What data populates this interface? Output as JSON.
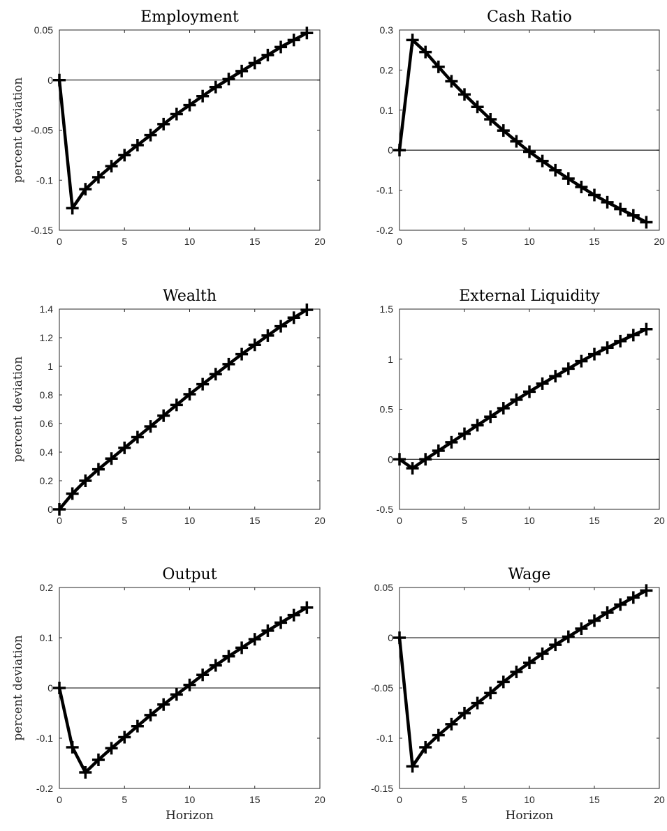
{
  "figure": {
    "ylabel": "percent deviation",
    "xlabel": "Horizon",
    "line_color": "#000000"
  },
  "chart_data": [
    {
      "type": "line",
      "title": "Employment",
      "ylabel": "percent deviation",
      "xlabel": "",
      "xlim": [
        0,
        20
      ],
      "ylim": [
        -0.15,
        0.05
      ],
      "xticks": [
        "0",
        "5",
        "10",
        "15",
        "20"
      ],
      "yticks": [
        "-0.15",
        "-0.1",
        "-0.05",
        "0",
        "0.05"
      ],
      "zero_line": true,
      "grid": false,
      "x": [
        0,
        1,
        2,
        3,
        4,
        5,
        6,
        7,
        8,
        9,
        10,
        11,
        12,
        13,
        14,
        15,
        16,
        17,
        18,
        19
      ],
      "values": [
        0,
        -0.128,
        -0.109,
        -0.097,
        -0.086,
        -0.075,
        -0.065,
        -0.055,
        -0.044,
        -0.034,
        -0.025,
        -0.016,
        -0.007,
        0.001,
        0.009,
        0.017,
        0.025,
        0.033,
        0.04,
        0.047
      ]
    },
    {
      "type": "line",
      "title": "Cash Ratio",
      "ylabel": "",
      "xlabel": "",
      "xlim": [
        0,
        20
      ],
      "ylim": [
        -0.2,
        0.3
      ],
      "xticks": [
        "0",
        "5",
        "10",
        "15",
        "20"
      ],
      "yticks": [
        "-0.2",
        "-0.1",
        "0",
        "0.1",
        "0.2",
        "0.3"
      ],
      "zero_line": true,
      "grid": false,
      "x": [
        0,
        1,
        2,
        3,
        4,
        5,
        6,
        7,
        8,
        9,
        10,
        11,
        12,
        13,
        14,
        15,
        16,
        17,
        18,
        19
      ],
      "values": [
        0,
        0.275,
        0.245,
        0.208,
        0.172,
        0.139,
        0.108,
        0.077,
        0.049,
        0.022,
        -0.004,
        -0.027,
        -0.05,
        -0.071,
        -0.092,
        -0.112,
        -0.13,
        -0.147,
        -0.163,
        -0.18
      ]
    },
    {
      "type": "line",
      "title": "Wealth",
      "ylabel": "percent deviation",
      "xlabel": "",
      "xlim": [
        0,
        20
      ],
      "ylim": [
        0,
        1.4
      ],
      "xticks": [
        "0",
        "5",
        "10",
        "15",
        "20"
      ],
      "yticks": [
        "0",
        "0.2",
        "0.4",
        "0.6",
        "0.8",
        "1",
        "1.2",
        "1.4"
      ],
      "zero_line": false,
      "grid": false,
      "x": [
        0,
        1,
        2,
        3,
        4,
        5,
        6,
        7,
        8,
        9,
        10,
        11,
        12,
        13,
        14,
        15,
        16,
        17,
        18,
        19
      ],
      "values": [
        0,
        0.11,
        0.2,
        0.28,
        0.355,
        0.43,
        0.505,
        0.58,
        0.655,
        0.73,
        0.805,
        0.875,
        0.945,
        1.015,
        1.085,
        1.15,
        1.215,
        1.28,
        1.34,
        1.395
      ]
    },
    {
      "type": "line",
      "title": "External Liquidity",
      "ylabel": "",
      "xlabel": "",
      "xlim": [
        0,
        20
      ],
      "ylim": [
        -0.5,
        1.5
      ],
      "xticks": [
        "0",
        "5",
        "10",
        "15",
        "20"
      ],
      "yticks": [
        "-0.5",
        "0",
        "0.5",
        "1",
        "1.5"
      ],
      "zero_line": true,
      "grid": false,
      "x": [
        0,
        1,
        2,
        3,
        4,
        5,
        6,
        7,
        8,
        9,
        10,
        11,
        12,
        13,
        14,
        15,
        16,
        17,
        18,
        19
      ],
      "values": [
        0,
        -0.09,
        0.0,
        0.085,
        0.17,
        0.255,
        0.34,
        0.425,
        0.51,
        0.595,
        0.675,
        0.755,
        0.83,
        0.905,
        0.98,
        1.05,
        1.115,
        1.18,
        1.24,
        1.3
      ]
    },
    {
      "type": "line",
      "title": "Output",
      "ylabel": "percent deviation",
      "xlabel": "Horizon",
      "xlim": [
        0,
        20
      ],
      "ylim": [
        -0.2,
        0.2
      ],
      "xticks": [
        "0",
        "5",
        "10",
        "15",
        "20"
      ],
      "yticks": [
        "-0.2",
        "-0.1",
        "0",
        "0.1",
        "0.2"
      ],
      "zero_line": true,
      "grid": false,
      "x": [
        0,
        1,
        2,
        3,
        4,
        5,
        6,
        7,
        8,
        9,
        10,
        11,
        12,
        13,
        14,
        15,
        16,
        17,
        18,
        19
      ],
      "values": [
        0,
        -0.118,
        -0.168,
        -0.143,
        -0.12,
        -0.098,
        -0.076,
        -0.054,
        -0.033,
        -0.013,
        0.006,
        0.026,
        0.045,
        0.063,
        0.08,
        0.097,
        0.114,
        0.13,
        0.145,
        0.16
      ]
    },
    {
      "type": "line",
      "title": "Wage",
      "ylabel": "",
      "xlabel": "Horizon",
      "xlim": [
        0,
        20
      ],
      "ylim": [
        -0.15,
        0.05
      ],
      "xticks": [
        "0",
        "5",
        "10",
        "15",
        "20"
      ],
      "yticks": [
        "-0.15",
        "-0.1",
        "-0.05",
        "0",
        "0.05"
      ],
      "zero_line": true,
      "grid": false,
      "x": [
        0,
        1,
        2,
        3,
        4,
        5,
        6,
        7,
        8,
        9,
        10,
        11,
        12,
        13,
        14,
        15,
        16,
        17,
        18,
        19
      ],
      "values": [
        0,
        -0.128,
        -0.109,
        -0.097,
        -0.086,
        -0.075,
        -0.065,
        -0.055,
        -0.044,
        -0.034,
        -0.025,
        -0.016,
        -0.007,
        0.001,
        0.009,
        0.017,
        0.025,
        0.033,
        0.04,
        0.047
      ]
    }
  ]
}
